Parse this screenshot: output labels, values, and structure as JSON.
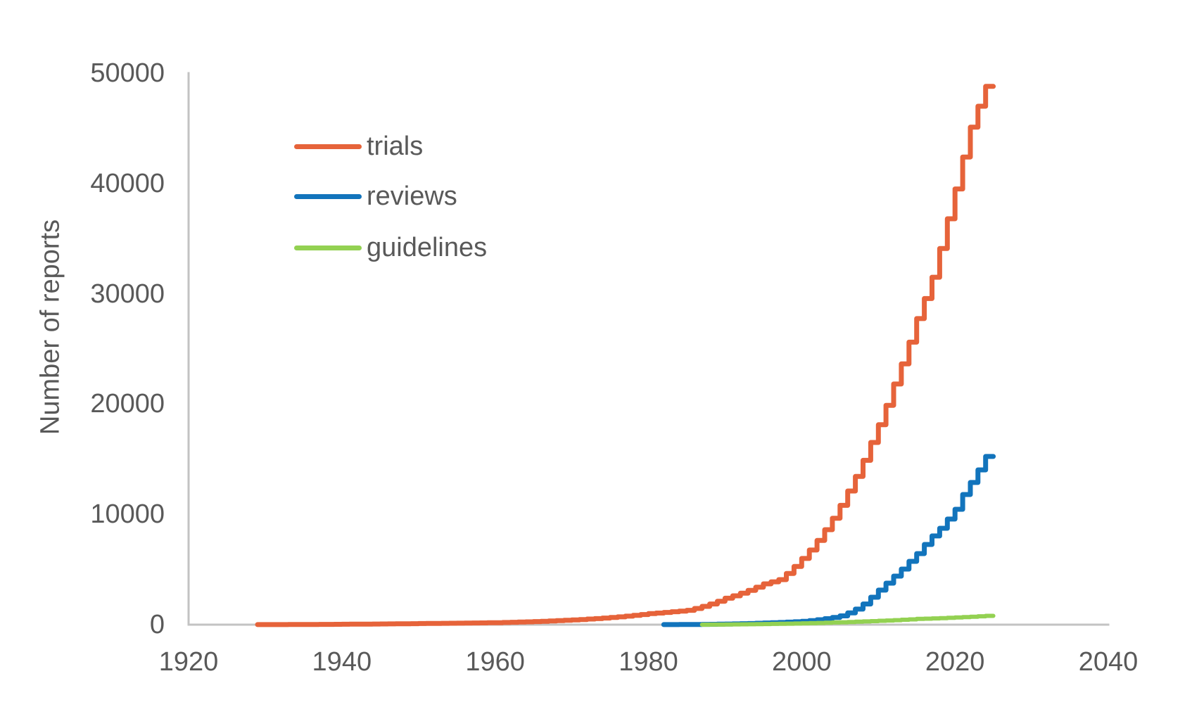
{
  "colors": {
    "trials": "#E6633A",
    "reviews": "#1274BC",
    "guidelines": "#93D152",
    "axis_line": "#C3C3C3",
    "text": "#595959",
    "background": "#FFFFFF"
  },
  "y_axis": {
    "title": "Number of reports"
  },
  "legend": {
    "items": [
      {
        "label": "trials",
        "color": "#E6633A"
      },
      {
        "label": "reviews",
        "color": "#1274BC"
      },
      {
        "label": "guidelines",
        "color": "#93D152"
      }
    ]
  },
  "chart_data": {
    "type": "line",
    "subtype": "yearly-step-curves",
    "title": "",
    "xlabel": "",
    "ylabel": "Number of reports",
    "xlim": [
      1920,
      2040
    ],
    "ylim": [
      0,
      50000
    ],
    "x_ticks": [
      1920,
      1940,
      1960,
      1980,
      2000,
      2020,
      2040
    ],
    "y_ticks": [
      0,
      10000,
      20000,
      30000,
      40000,
      50000
    ],
    "grid": false,
    "legend_position": "inside-upper-left",
    "interpolation": "log-linear between anchor points, rendered as one step per year",
    "series": [
      {
        "name": "trials",
        "color": "#E6633A",
        "start_year": 1929,
        "end_year": 2024,
        "end_value": 48800,
        "anchors": [
          [
            1929,
            5
          ],
          [
            1940,
            40
          ],
          [
            1950,
            100
          ],
          [
            1960,
            180
          ],
          [
            1965,
            280
          ],
          [
            1970,
            430
          ],
          [
            1975,
            650
          ],
          [
            1980,
            1000
          ],
          [
            1985,
            1300
          ],
          [
            1990,
            2400
          ],
          [
            1995,
            3700
          ],
          [
            1997,
            4080
          ],
          [
            2000,
            6000
          ],
          [
            2003,
            8610
          ],
          [
            2006,
            12120
          ],
          [
            2009,
            16520
          ],
          [
            2012,
            21820
          ],
          [
            2015,
            27750
          ],
          [
            2017,
            31500
          ],
          [
            2018,
            34100
          ],
          [
            2019,
            36800
          ],
          [
            2020,
            39500
          ],
          [
            2021,
            42400
          ],
          [
            2022,
            45100
          ],
          [
            2023,
            47000
          ],
          [
            2024,
            48800
          ]
        ]
      },
      {
        "name": "reviews",
        "color": "#1274BC",
        "start_year": 1982,
        "end_year": 2024,
        "end_value": 15250,
        "anchors": [
          [
            1982,
            5
          ],
          [
            1985,
            15
          ],
          [
            1990,
            60
          ],
          [
            1995,
            150
          ],
          [
            2000,
            300
          ],
          [
            2005,
            800
          ],
          [
            2009,
            2490
          ],
          [
            2010,
            3130
          ],
          [
            2011,
            3760
          ],
          [
            2012,
            4400
          ],
          [
            2013,
            5040
          ],
          [
            2014,
            5740
          ],
          [
            2015,
            6440
          ],
          [
            2016,
            7270
          ],
          [
            2017,
            8040
          ],
          [
            2018,
            8740
          ],
          [
            2019,
            9570
          ],
          [
            2020,
            10460
          ],
          [
            2021,
            11800
          ],
          [
            2022,
            12890
          ],
          [
            2023,
            14030
          ],
          [
            2024,
            15250
          ]
        ]
      },
      {
        "name": "guidelines",
        "color": "#93D152",
        "start_year": 1987,
        "end_year": 2024,
        "end_value": 800,
        "anchors": [
          [
            1987,
            2
          ],
          [
            1990,
            20
          ],
          [
            1995,
            60
          ],
          [
            2000,
            120
          ],
          [
            2005,
            220
          ],
          [
            2010,
            350
          ],
          [
            2015,
            520
          ],
          [
            2020,
            650
          ],
          [
            2024,
            800
          ]
        ]
      }
    ]
  },
  "plot_geometry_labels": {
    "note": "axis frame is an L shape: vertical y-axis line and horizontal x-axis baseline, no tick marks, no gridlines"
  }
}
